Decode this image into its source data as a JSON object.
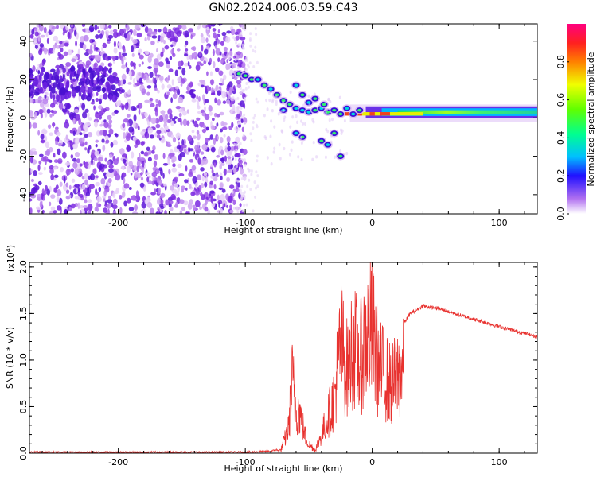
{
  "title": "GN02.2024.006.03.59.C43",
  "colors": {
    "snr_line": "#e8322f",
    "spec_low": "#d8b8f0",
    "spec_mid": "#6a20e0",
    "spec_high": "#00ff40"
  },
  "chart_data": [
    {
      "type": "heatmap",
      "xlabel": "Height of straight line (km)",
      "ylabel": "Frequency (Hz)",
      "xlim": [
        -270,
        130
      ],
      "ylim": [
        -50,
        49
      ],
      "xticks": [
        -200,
        -100,
        0,
        100
      ],
      "yticks": [
        -40,
        -20,
        0,
        20,
        40
      ],
      "colorbar": {
        "label": "Normalized spectral amplitude",
        "range": [
          0,
          1
        ],
        "ticks": [
          "0.0",
          "0.2",
          "0.4",
          "0.6",
          "0.8"
        ]
      },
      "features": [
        {
          "name": "steady band",
          "x": [
            20,
            130
          ],
          "freq": [
            1,
            5
          ],
          "amplitude": 0.45
        },
        {
          "name": "bright core",
          "x": [
            -25,
            40
          ],
          "freq": [
            1,
            3
          ],
          "amplitude": 0.9
        },
        {
          "name": "diagonal arc",
          "x": [
            -110,
            -20
          ],
          "freq": [
            25,
            2
          ],
          "amplitude": 0.35
        },
        {
          "name": "noise field",
          "x": [
            -270,
            -100
          ],
          "freq": [
            -50,
            49
          ],
          "amplitude": 0.1
        }
      ]
    },
    {
      "type": "line",
      "xlabel": "Height of straight line (km)",
      "ylabel": "SNR (10 * v/v)",
      "y_multiplier": "(x10",
      "y_multiplier_exp": "4",
      "y_multiplier_close": ")",
      "xlim": [
        -270,
        130
      ],
      "ylim": [
        0,
        2.05
      ],
      "xticks": [
        -200,
        -100,
        0,
        100
      ],
      "yticks": [
        "0.0",
        "0.5",
        "1.0",
        "1.5",
        "2.0"
      ],
      "series": [
        {
          "x": [
            -270,
            -200,
            -150,
            -100,
            -80,
            -72,
            -66,
            -63,
            -60,
            -57,
            -53,
            -50,
            -45,
            -40,
            -35,
            -30,
            -25,
            -20,
            -15,
            -10,
            -5,
            0,
            5,
            10,
            15,
            20,
            30,
            40,
            50,
            60,
            80,
            100,
            130
          ],
          "y": [
            0.01,
            0.01,
            0.01,
            0.01,
            0.02,
            0.05,
            0.4,
            1.2,
            0.75,
            0.65,
            0.3,
            0.15,
            0.05,
            0.3,
            0.6,
            0.9,
            1.85,
            1.4,
            1.8,
            1.5,
            1.9,
            2.03,
            1.4,
            1.3,
            1.1,
            1.3,
            1.5,
            1.58,
            1.56,
            1.52,
            1.44,
            1.36,
            1.25
          ]
        }
      ]
    }
  ]
}
